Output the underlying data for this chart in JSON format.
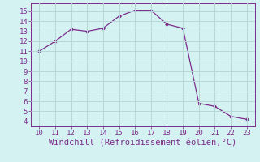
{
  "x": [
    10,
    11,
    12,
    13,
    14,
    15,
    16,
    17,
    18,
    19,
    20,
    21,
    22,
    23
  ],
  "y": [
    11.0,
    12.0,
    13.2,
    13.0,
    13.3,
    14.5,
    15.1,
    15.1,
    13.7,
    13.3,
    5.8,
    5.5,
    4.5,
    4.2
  ],
  "xlim": [
    9.5,
    23.5
  ],
  "ylim": [
    3.5,
    15.8
  ],
  "xticks": [
    10,
    11,
    12,
    13,
    14,
    15,
    16,
    17,
    18,
    19,
    20,
    21,
    22,
    23
  ],
  "yticks": [
    4,
    5,
    6,
    7,
    8,
    9,
    10,
    11,
    12,
    13,
    14,
    15
  ],
  "xlabel": "Windchill (Refroidissement éolien,°C)",
  "line_color": "#7b2d8b",
  "marker": "D",
  "marker_size": 2.5,
  "background_color": "#d5f2f2",
  "grid_color": "#b8d8d8",
  "tick_color": "#7b2d8b",
  "label_color": "#7b2d8b",
  "tick_fontsize": 6.5,
  "xlabel_fontsize": 7.5
}
